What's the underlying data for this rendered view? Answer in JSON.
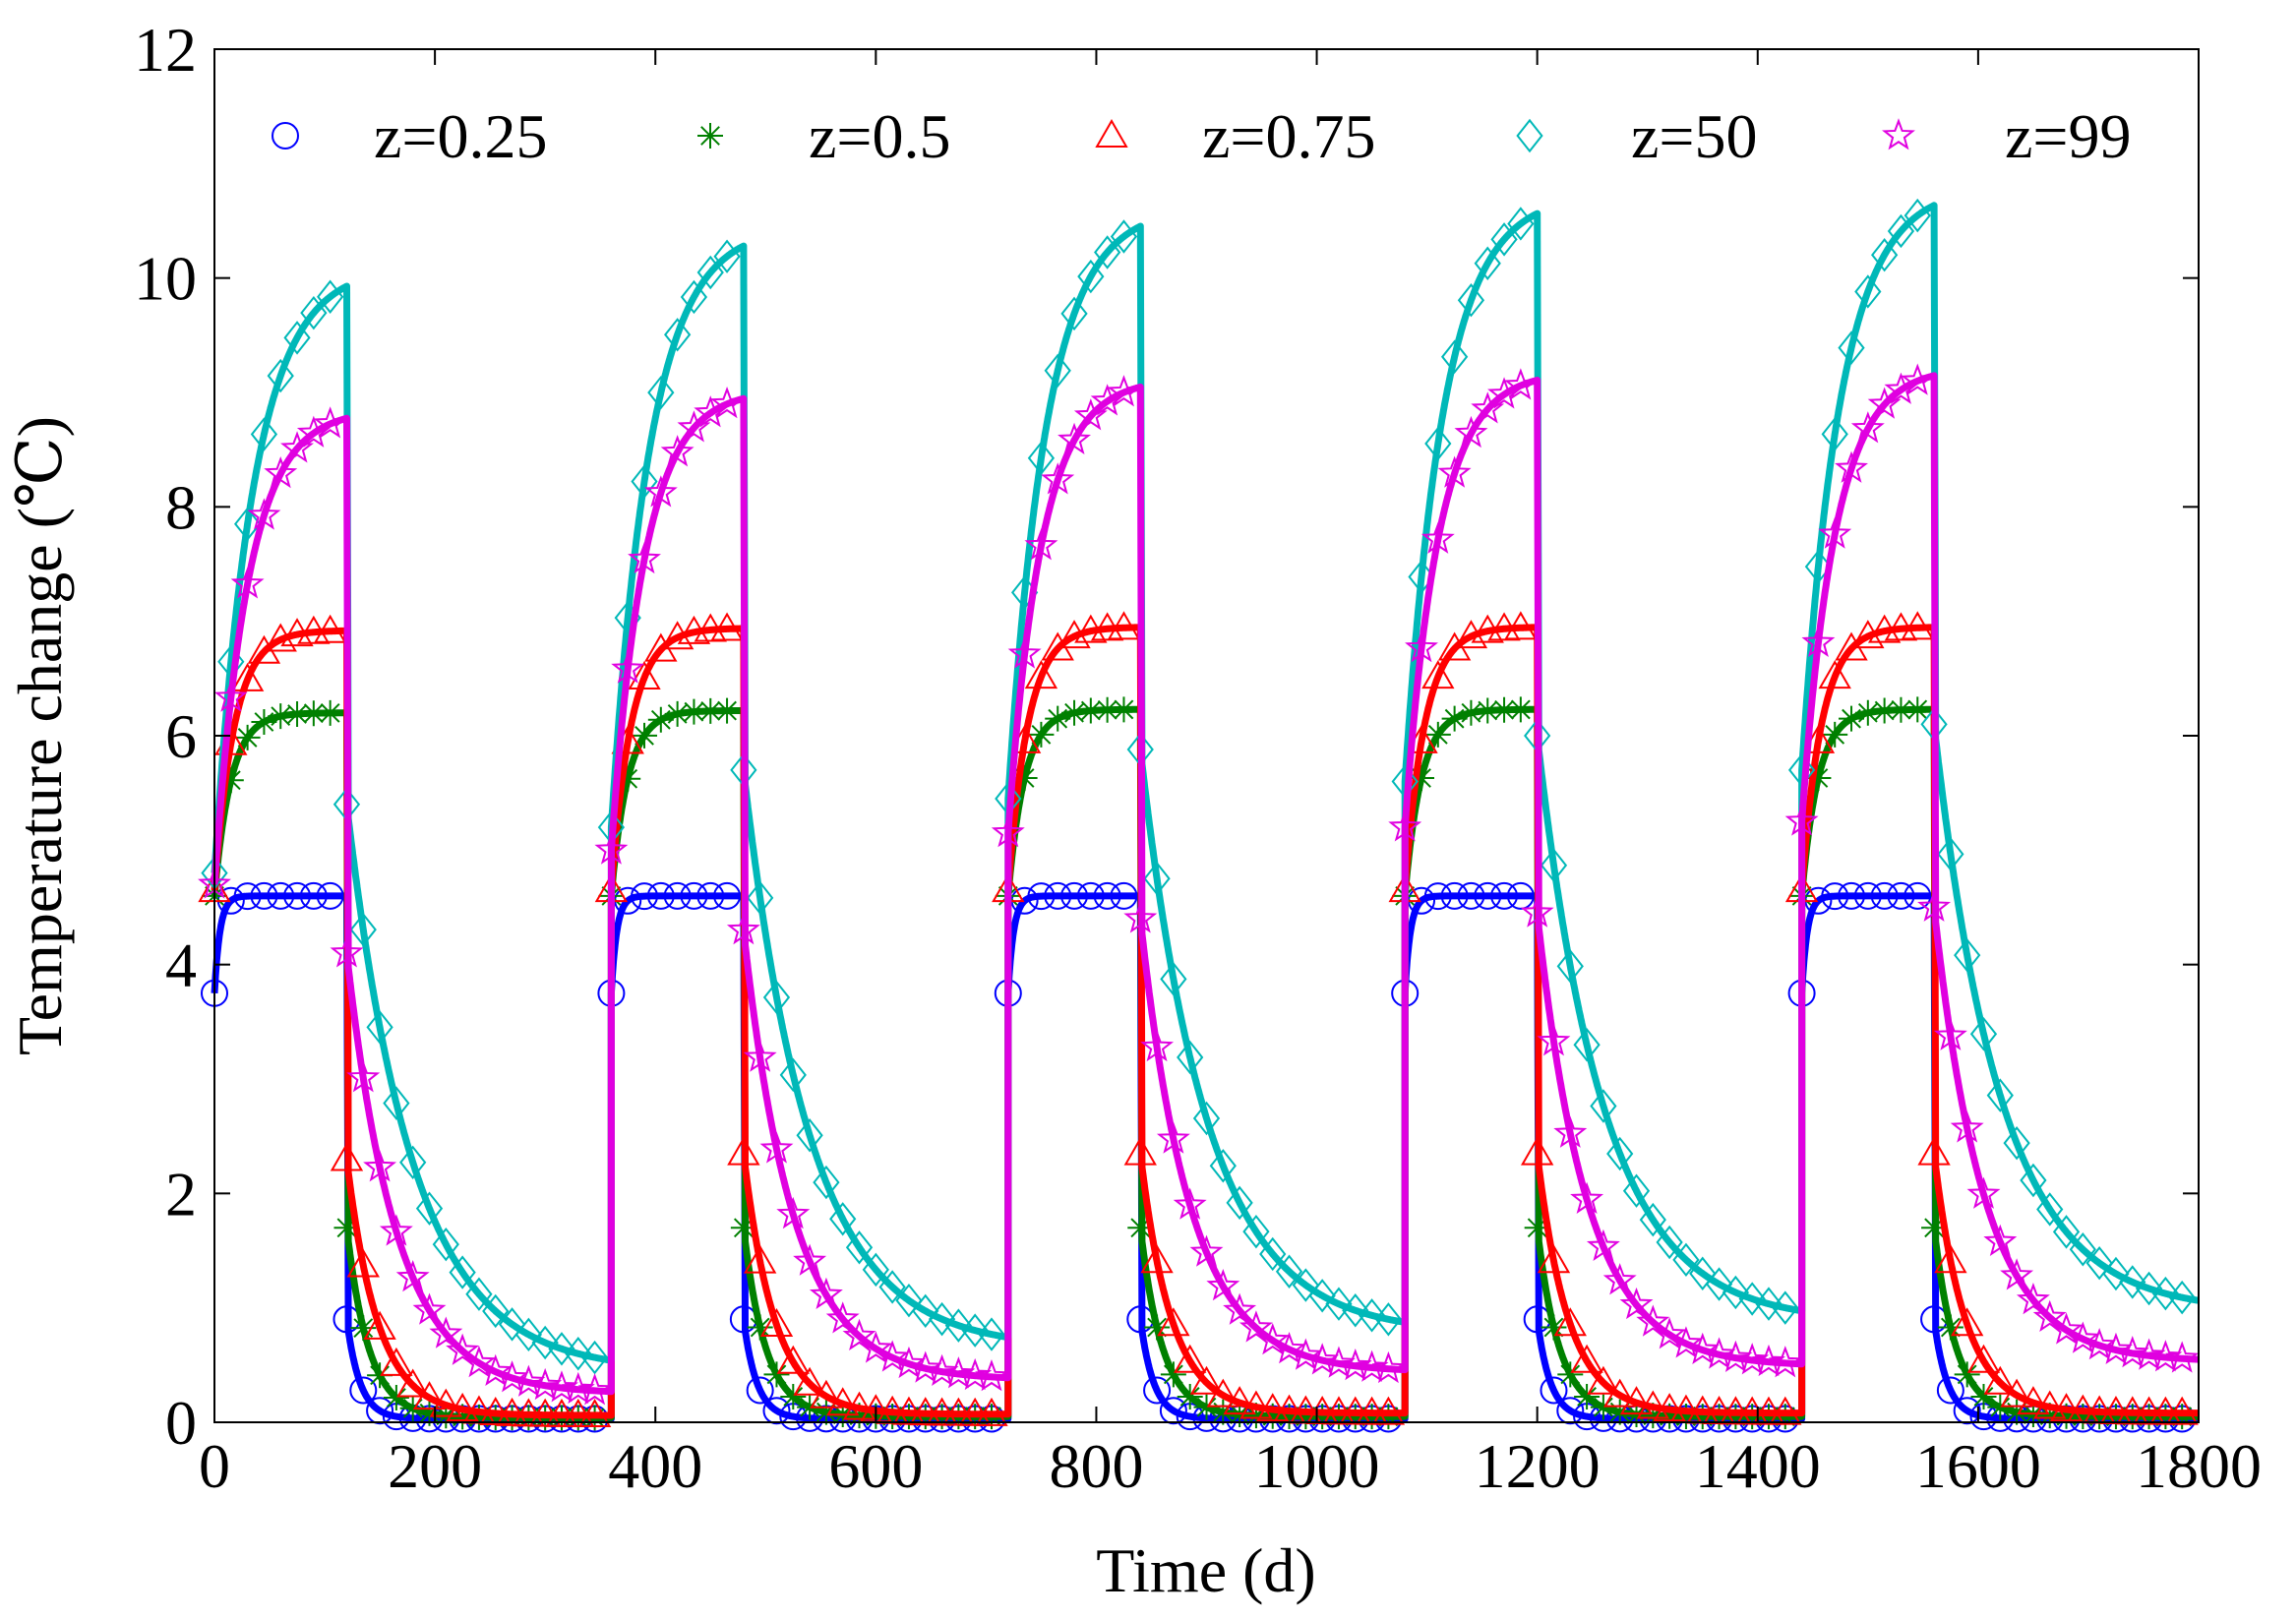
{
  "chart_data": {
    "type": "line",
    "title": "",
    "xlabel": "Time (d)",
    "ylabel": "Temperature change (℃)",
    "xlim": [
      0,
      1800
    ],
    "ylim": [
      0,
      12
    ],
    "xticks": [
      0,
      200,
      400,
      600,
      800,
      1000,
      1200,
      1400,
      1600,
      1800
    ],
    "yticks": [
      0,
      2,
      4,
      6,
      8,
      10,
      12
    ],
    "xtick_labels": [
      "0",
      "200",
      "400",
      "600",
      "800",
      "1000",
      "1200",
      "1400",
      "1600",
      "1800"
    ],
    "ytick_labels": [
      "0",
      "2",
      "4",
      "6",
      "8",
      "10",
      "12"
    ],
    "grid": false,
    "legend_position": "top",
    "cycle": {
      "period_days": 360,
      "heating_days": 120,
      "num_cycles": 5
    },
    "series": [
      {
        "name": "z=0.25",
        "color": "#0000ff",
        "marker": "circle",
        "heating_start": [
          3.75,
          3.75,
          3.75,
          3.75,
          3.75
        ],
        "heating_end": [
          4.6,
          4.6,
          4.6,
          4.6,
          4.6
        ],
        "heating_tau": 5,
        "recovery_start": [
          0.9,
          0.9,
          0.9,
          0.9,
          0.9
        ],
        "recovery_end": [
          0.03,
          0.03,
          0.03,
          0.03,
          0.03
        ],
        "recovery_tau": 12
      },
      {
        "name": "z=0.5",
        "color": "#008000",
        "marker": "asterisk",
        "heating_start": [
          4.6,
          4.6,
          4.6,
          4.6,
          4.6
        ],
        "heating_end": [
          6.2,
          6.22,
          6.23,
          6.23,
          6.23
        ],
        "heating_tau": 15,
        "recovery_start": [
          1.7,
          1.7,
          1.7,
          1.7,
          1.7
        ],
        "recovery_end": [
          0.04,
          0.05,
          0.05,
          0.05,
          0.05
        ],
        "recovery_tau": 20
      },
      {
        "name": "z=0.75",
        "color": "#ff0000",
        "marker": "triangle",
        "heating_start": [
          4.65,
          4.65,
          4.65,
          4.65,
          4.65
        ],
        "heating_end": [
          6.92,
          6.94,
          6.95,
          6.95,
          6.95
        ],
        "heating_tau": 18,
        "recovery_start": [
          2.3,
          2.35,
          2.35,
          2.35,
          2.35
        ],
        "recovery_end": [
          0.06,
          0.07,
          0.08,
          0.08,
          0.08
        ],
        "recovery_tau": 28
      },
      {
        "name": "z=50",
        "color": "#00b8b8",
        "marker": "diamond",
        "heating_start": [
          4.8,
          5.2,
          5.45,
          5.6,
          5.7
        ],
        "heating_end": [
          10.1,
          10.45,
          10.62,
          10.73,
          10.8
        ],
        "heating_tau": 35,
        "recovery_start": [
          5.4,
          5.7,
          5.88,
          6.0,
          6.1
        ],
        "recovery_end": [
          0.45,
          0.65,
          0.78,
          0.88,
          0.97
        ],
        "recovery_tau": 60
      },
      {
        "name": "z=99",
        "color": "#e000e0",
        "marker": "star",
        "heating_start": [
          4.7,
          5.0,
          5.15,
          5.2,
          5.25
        ],
        "heating_end": [
          8.85,
          9.02,
          9.12,
          9.18,
          9.22
        ],
        "heating_tau": 30,
        "recovery_start": [
          4.1,
          4.3,
          4.4,
          4.45,
          4.5
        ],
        "recovery_end": [
          0.25,
          0.37,
          0.44,
          0.49,
          0.53
        ],
        "recovery_tau": 45
      }
    ]
  }
}
